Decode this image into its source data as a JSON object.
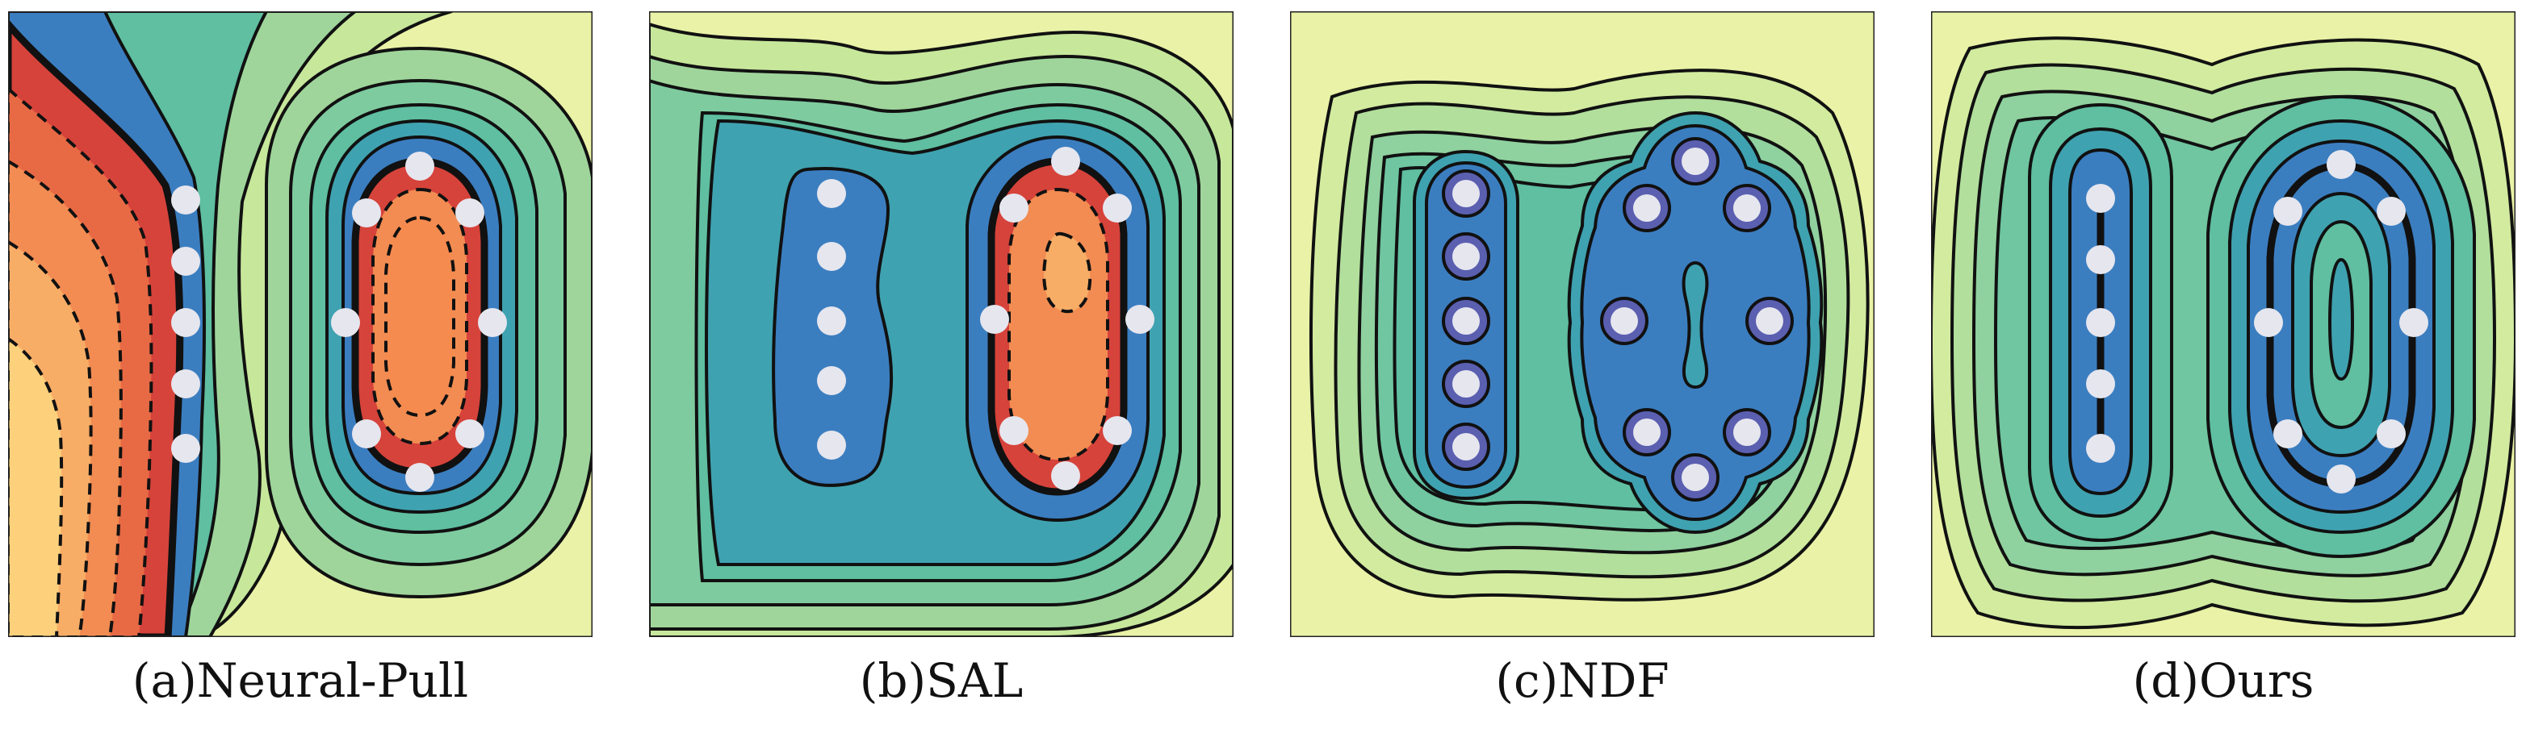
{
  "panels": [
    {
      "id": "a",
      "caption": "(a)Neural-Pull"
    },
    {
      "id": "b",
      "caption": "(b)SAL"
    },
    {
      "id": "c",
      "caption": "(c)NDF"
    },
    {
      "id": "d",
      "caption": "(d)Ours"
    }
  ],
  "colors": {
    "outer": "#e9f2a6",
    "mid": "#9fd59b",
    "teal": "#5fbfa0",
    "deepteal": "#3fa2b0",
    "blue": "#3b7ec0",
    "navy": "#5b5fb0",
    "red": "#d6433b",
    "orange": "#f28c52",
    "peach": "#fdd17c",
    "point": "#e6e6ee"
  }
}
